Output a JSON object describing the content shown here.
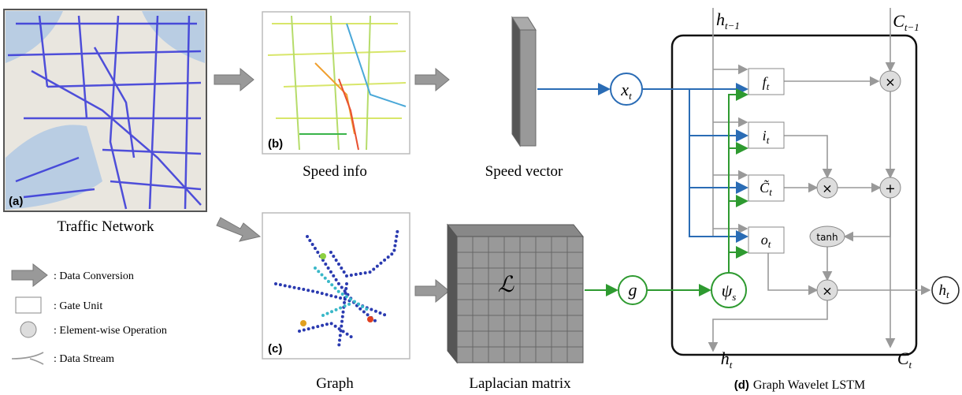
{
  "panels": {
    "a": {
      "tag": "(a)",
      "caption": "Traffic Network"
    },
    "b": {
      "tag": "(b)",
      "caption": "Speed info"
    },
    "vector": {
      "caption": "Speed vector"
    },
    "c": {
      "tag": "(c)",
      "caption": "Graph"
    },
    "matrix": {
      "symbol": "ℒ",
      "caption": "Laplacian matrix"
    },
    "d": {
      "tag": "(d)",
      "caption": "Graph Wavelet LSTM"
    }
  },
  "legend": [
    ": Data Conversion",
    ": Gate Unit",
    ": Element-wise Operation",
    ": Data Stream"
  ],
  "symbols": {
    "x": {
      "base": "x",
      "sub": "t"
    },
    "g": {
      "base": "g"
    },
    "psi": {
      "base": "ψ",
      "sub": "s"
    },
    "f": {
      "base": "f",
      "sub": "t"
    },
    "i": {
      "base": "i",
      "sub": "t"
    },
    "c": {
      "base": "C̃",
      "sub": "t"
    },
    "o": {
      "base": "o",
      "sub": "t"
    },
    "h_prev": {
      "base": "h",
      "sub": "t−1"
    },
    "c_prev": {
      "base": "C",
      "sub": "t−1"
    },
    "h_out": {
      "base": "h",
      "sub": "t"
    },
    "c_out": {
      "base": "C",
      "sub": "t"
    },
    "h_right": {
      "base": "h",
      "sub": "t"
    }
  },
  "operators": {
    "mult_f": "×",
    "mult_i": "×",
    "add": "+",
    "tanh": "tanh",
    "mult_o": "×"
  }
}
